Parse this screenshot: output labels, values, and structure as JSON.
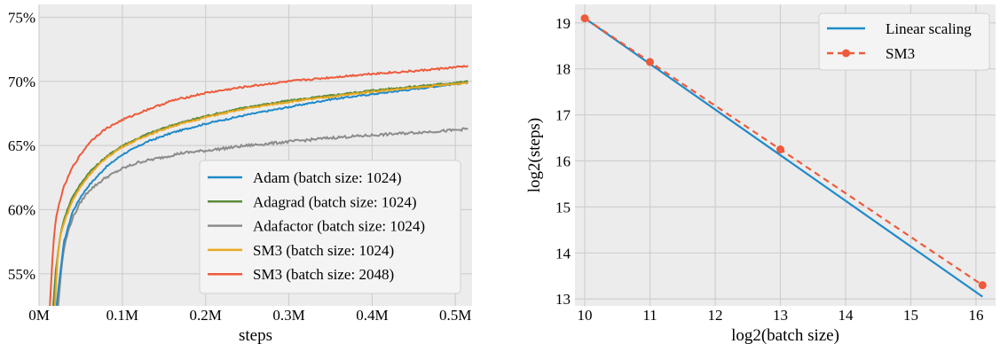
{
  "chart_data": [
    {
      "type": "line",
      "xlabel": "steps",
      "ylabel": "",
      "xlim": [
        0,
        520000
      ],
      "ylim": [
        52.5,
        76
      ],
      "grid": true,
      "legend_position": "lower-right",
      "xticks": [
        {
          "value": 0,
          "label": "0M"
        },
        {
          "value": 100000,
          "label": "0.1M"
        },
        {
          "value": 200000,
          "label": "0.2M"
        },
        {
          "value": 300000,
          "label": "0.3M"
        },
        {
          "value": 400000,
          "label": "0.4M"
        },
        {
          "value": 500000,
          "label": "0.5M"
        }
      ],
      "yticks": [
        {
          "value": 55,
          "label": "55%"
        },
        {
          "value": 60,
          "label": "60%"
        },
        {
          "value": 65,
          "label": "65%"
        },
        {
          "value": 70,
          "label": "70%"
        },
        {
          "value": 75,
          "label": "75%"
        }
      ],
      "series": [
        {
          "name": "Adam (batch size: 1024)",
          "color": "#1f8ac9",
          "noise": 0.06,
          "x": [
            21000,
            25000,
            30000,
            40000,
            50000,
            60000,
            80000,
            100000,
            130000,
            160000,
            200000,
            250000,
            300000,
            350000,
            400000,
            450000,
            500000,
            515000
          ],
          "y": [
            52.5,
            54.8,
            57.5,
            59.8,
            61.0,
            61.9,
            63.3,
            64.3,
            65.3,
            66.0,
            66.7,
            67.4,
            68.0,
            68.6,
            69.0,
            69.4,
            69.8,
            69.9
          ]
        },
        {
          "name": "Adagrad (batch size: 1024)",
          "color": "#5e8b3b",
          "noise": 0.06,
          "x": [
            17000,
            20000,
            25000,
            30000,
            40000,
            50000,
            60000,
            80000,
            100000,
            130000,
            160000,
            200000,
            250000,
            300000,
            350000,
            400000,
            450000,
            500000,
            515000
          ],
          "y": [
            52.5,
            55.2,
            57.8,
            59.3,
            61.0,
            62.0,
            62.9,
            64.1,
            65.0,
            65.9,
            66.6,
            67.3,
            68.0,
            68.5,
            68.9,
            69.3,
            69.6,
            69.9,
            70.0
          ]
        },
        {
          "name": "Adafactor (batch size: 1024)",
          "color": "#8c8c8c",
          "noise": 0.1,
          "x": [
            23000,
            27000,
            30000,
            35000,
            40000,
            50000,
            60000,
            70000,
            80000,
            100000,
            120000,
            150000,
            170000,
            200000,
            250000,
            300000,
            350000,
            400000,
            450000,
            500000,
            515000
          ],
          "y": [
            52.5,
            55.5,
            57.0,
            58.3,
            59.3,
            60.6,
            61.5,
            62.0,
            62.5,
            63.2,
            63.7,
            64.1,
            64.4,
            64.6,
            65.0,
            65.3,
            65.6,
            65.8,
            66.0,
            66.2,
            66.3
          ]
        },
        {
          "name": "SM3 (batch size: 1024)",
          "color": "#e9a820",
          "noise": 0.06,
          "x": [
            19000,
            22000,
            25000,
            30000,
            40000,
            50000,
            60000,
            80000,
            100000,
            130000,
            160000,
            200000,
            250000,
            300000,
            350000,
            400000,
            450000,
            500000,
            515000
          ],
          "y": [
            52.5,
            56.0,
            57.8,
            59.0,
            60.7,
            61.8,
            62.7,
            64.0,
            64.9,
            65.8,
            66.5,
            67.2,
            67.9,
            68.4,
            68.8,
            69.2,
            69.5,
            69.8,
            69.9
          ]
        },
        {
          "name": "SM3 (batch size: 2048)",
          "color": "#ee5a3a",
          "noise": 0.07,
          "x": [
            13000,
            17000,
            20000,
            25000,
            30000,
            40000,
            50000,
            60000,
            70000,
            80000,
            100000,
            130000,
            160000,
            200000,
            250000,
            300000,
            350000,
            400000,
            450000,
            500000,
            515000
          ],
          "y": [
            52.5,
            57.2,
            59.2,
            60.7,
            61.8,
            63.3,
            64.3,
            65.2,
            65.8,
            66.3,
            67.0,
            67.8,
            68.5,
            69.1,
            69.6,
            70.0,
            70.3,
            70.6,
            70.8,
            71.1,
            71.2
          ]
        }
      ]
    },
    {
      "type": "line",
      "xlabel": "log2(batch size)",
      "ylabel": "log2(steps)",
      "xlim": [
        9.85,
        16.3
      ],
      "ylim": [
        12.85,
        19.4
      ],
      "grid": true,
      "legend_position": "top-right",
      "xticks": [
        {
          "value": 10,
          "label": "10"
        },
        {
          "value": 11,
          "label": "11"
        },
        {
          "value": 12,
          "label": "12"
        },
        {
          "value": 13,
          "label": "13"
        },
        {
          "value": 14,
          "label": "14"
        },
        {
          "value": 15,
          "label": "15"
        },
        {
          "value": 16,
          "label": "16"
        }
      ],
      "yticks": [
        {
          "value": 13,
          "label": "13"
        },
        {
          "value": 14,
          "label": "14"
        },
        {
          "value": 15,
          "label": "15"
        },
        {
          "value": 16,
          "label": "16"
        },
        {
          "value": 17,
          "label": "17"
        },
        {
          "value": 18,
          "label": "18"
        },
        {
          "value": 19,
          "label": "19"
        }
      ],
      "series": [
        {
          "name": "Linear scaling",
          "color": "#1f8ac9",
          "dashed": false,
          "markers": false,
          "x": [
            10,
            16.1
          ],
          "y": [
            19.1,
            13.05
          ]
        },
        {
          "name": "SM3",
          "color": "#ee5a3a",
          "dashed": true,
          "markers": true,
          "x": [
            10,
            11,
            13,
            16.1
          ],
          "y": [
            19.1,
            18.15,
            16.25,
            13.3
          ]
        }
      ]
    }
  ]
}
